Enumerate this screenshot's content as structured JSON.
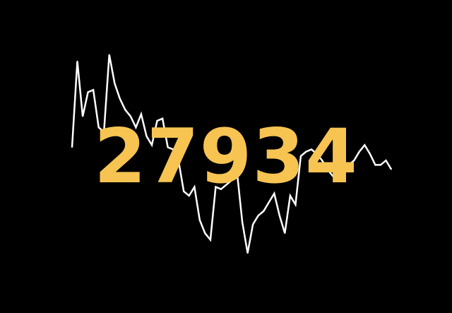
{
  "colors": {
    "background": "#000000",
    "line": "#ffffff",
    "number": "#f7c452"
  },
  "headline_value": "27934",
  "chart_data": {
    "type": "line",
    "title": "",
    "xlabel": "",
    "ylabel": "",
    "grid": false,
    "legend": "none",
    "x": [
      0,
      1,
      2,
      3,
      4,
      5,
      6,
      7,
      8,
      9,
      10,
      11,
      12,
      13,
      14,
      15,
      16,
      17,
      18,
      19,
      20,
      21,
      22,
      23,
      24,
      25,
      26,
      27,
      28,
      29,
      30,
      31,
      32,
      33,
      34,
      35,
      36,
      37,
      38,
      39,
      40,
      41,
      42,
      43,
      44,
      45,
      46,
      47,
      48,
      49,
      50,
      51,
      52,
      53,
      54,
      55,
      56,
      57,
      58,
      59,
      60
    ],
    "ylim": [
      0,
      100
    ],
    "series": [
      {
        "values": [
          55,
          94,
          69,
          80,
          81,
          64,
          62,
          97,
          84,
          77,
          72,
          69,
          64,
          70,
          60,
          56,
          67,
          68,
          55,
          54,
          49,
          35,
          33,
          37,
          22,
          16,
          13,
          37,
          36,
          38,
          40,
          44,
          21,
          7,
          20,
          24,
          26,
          30,
          34,
          24,
          16,
          33,
          29,
          51,
          53,
          54,
          52,
          49,
          45,
          42,
          40,
          44,
          47,
          49,
          53,
          56,
          52,
          47,
          47,
          49,
          45
        ]
      }
    ]
  }
}
